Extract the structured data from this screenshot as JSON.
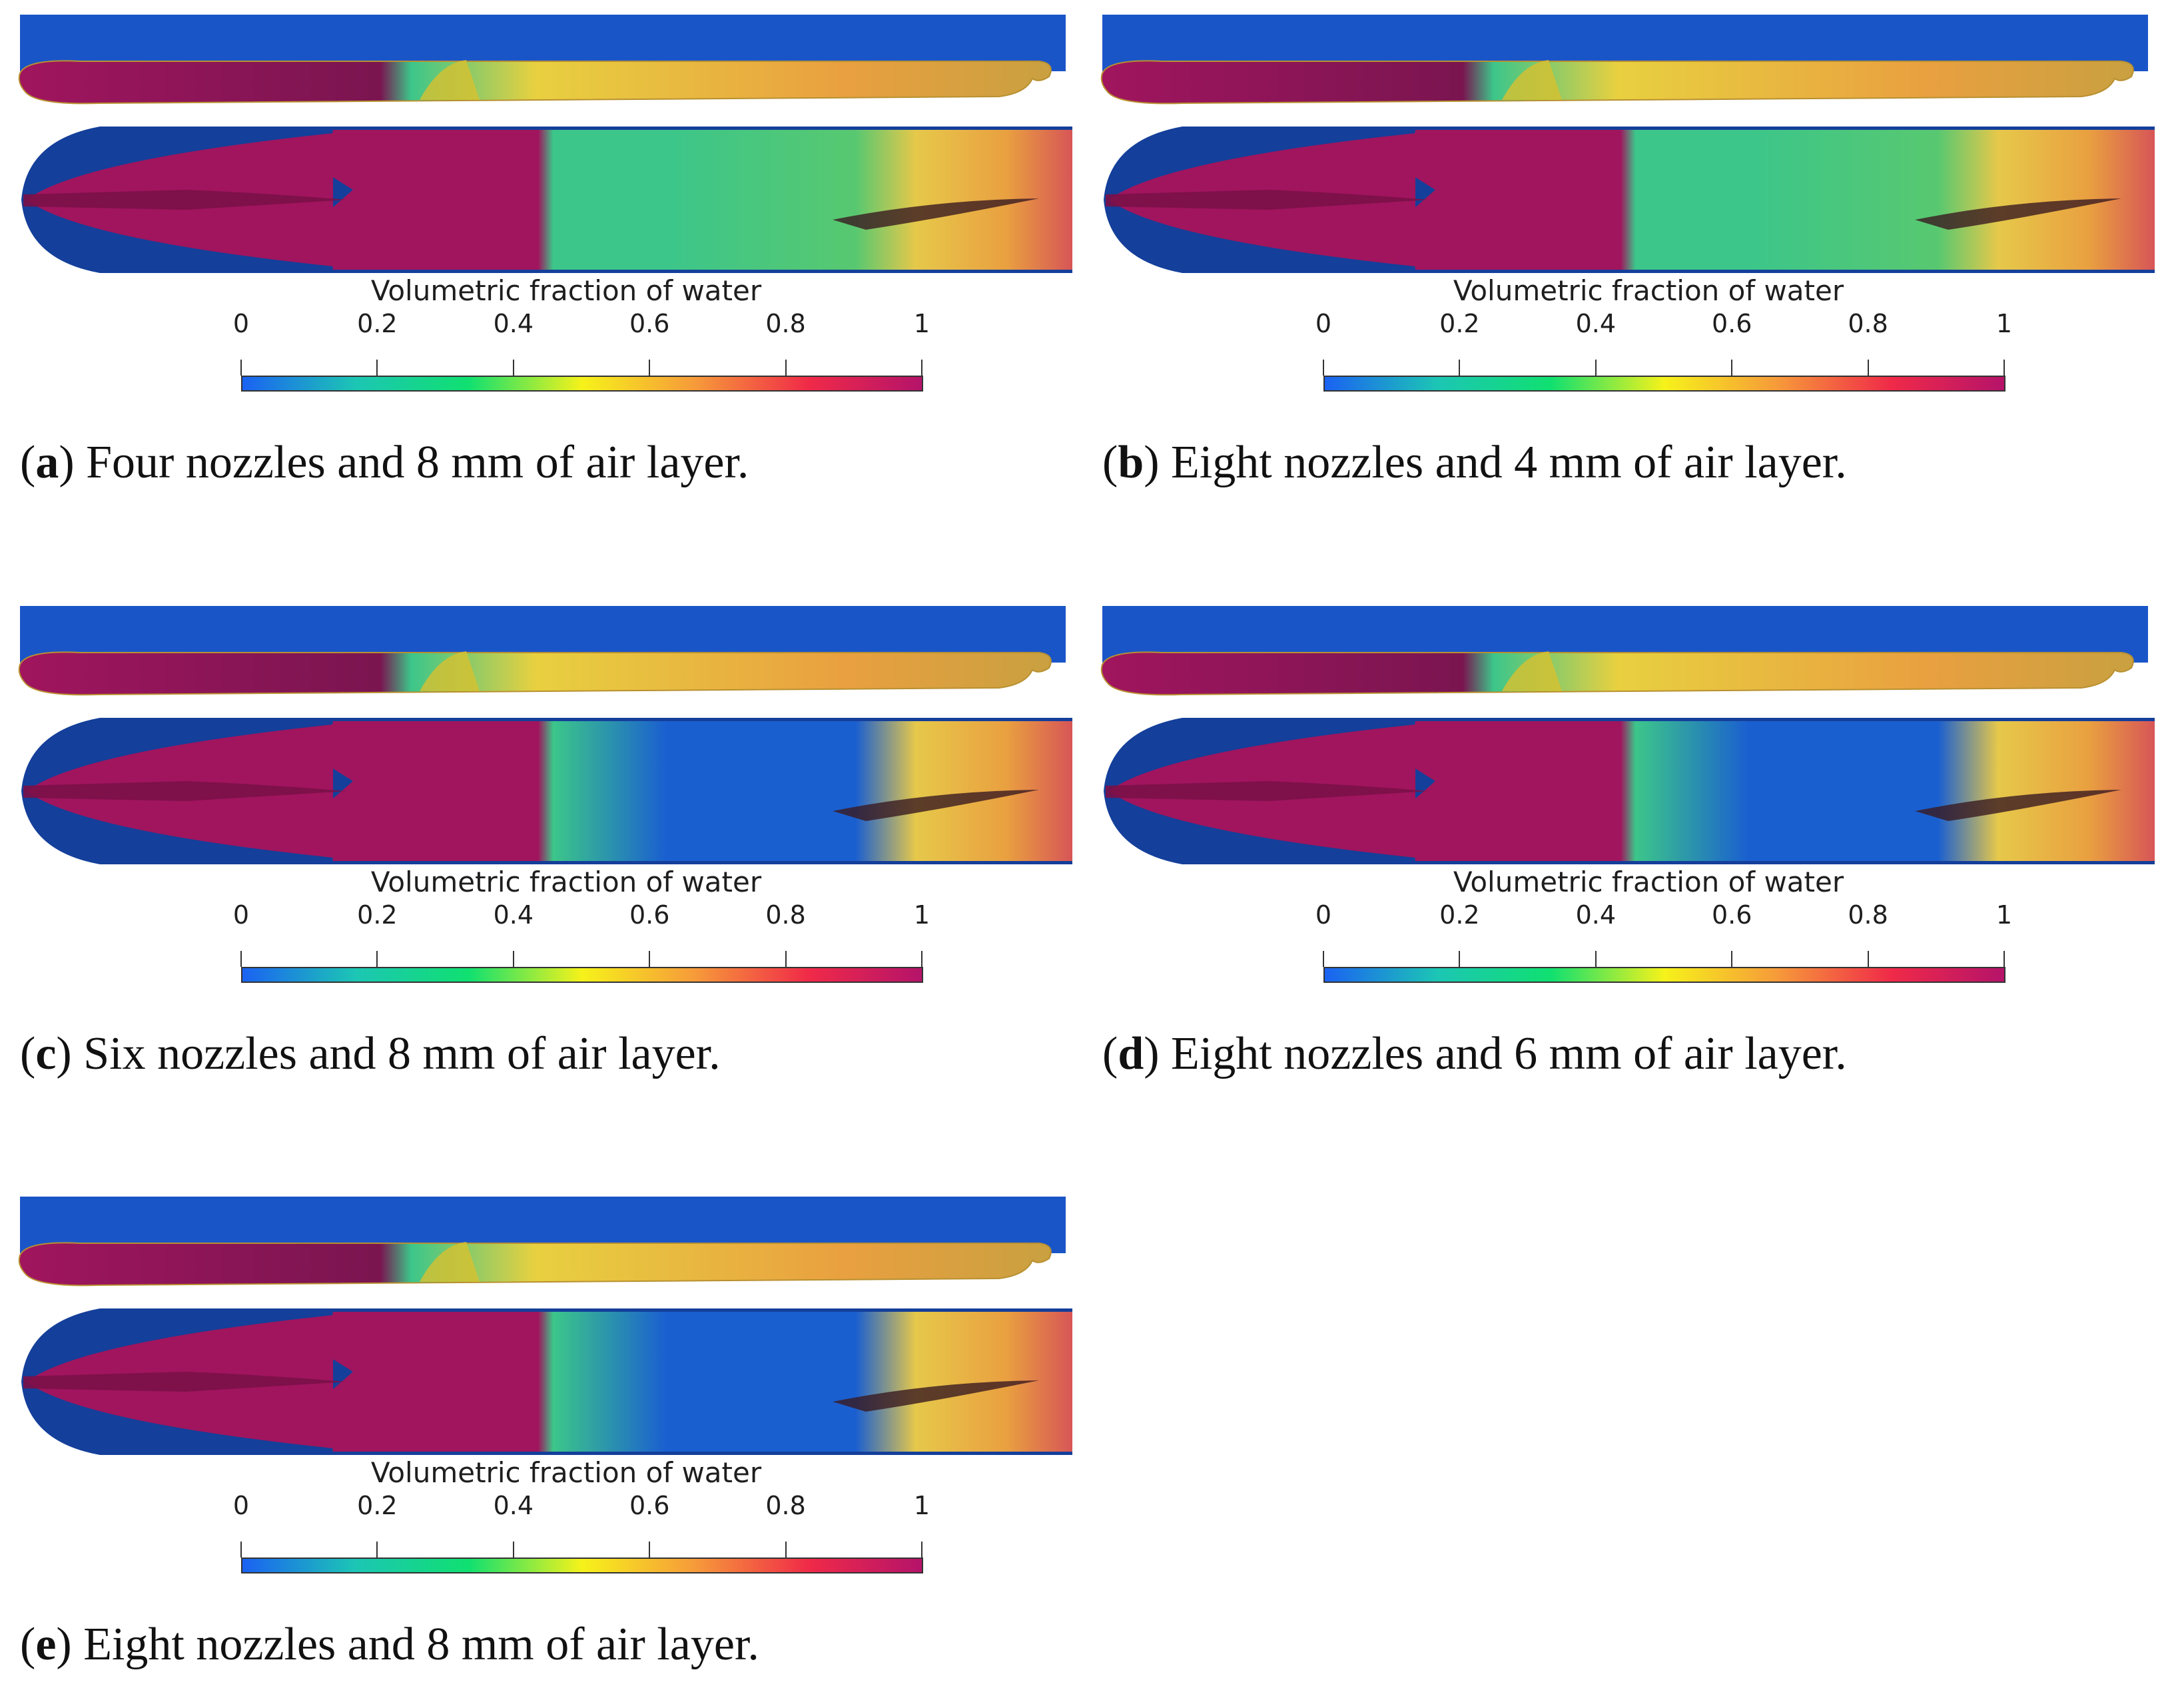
{
  "colorbar": {
    "title": "Volumetric fraction of water",
    "ticks": [
      "0",
      "0.2",
      "0.4",
      "0.6",
      "0.8",
      "1"
    ],
    "colors": [
      "#1b62f2",
      "#1cc6b4",
      "#10e070",
      "#f6f21a",
      "#f69a3a",
      "#f02a48",
      "#b5136a"
    ]
  },
  "colors": {
    "hull_top": "#1a55c8",
    "hull_bottom_dark": "#143f9a",
    "air_region": "#1a5fd0",
    "water_full": "#a0155e",
    "mixed_green": "#3cc68a",
    "mixed_orange": "#e9a040"
  },
  "panels": [
    {
      "letter": "a",
      "caption": "Four nozzles and 8 mm of air layer."
    },
    {
      "letter": "b",
      "caption": "Eight nozzles and 4 mm of air layer."
    },
    {
      "letter": "c",
      "caption": "Six nozzles and 8 mm of air layer."
    },
    {
      "letter": "d",
      "caption": "Eight nozzles and 6 mm of air layer."
    },
    {
      "letter": "e",
      "caption": "Eight nozzles and 8 mm of air layer."
    }
  ]
}
